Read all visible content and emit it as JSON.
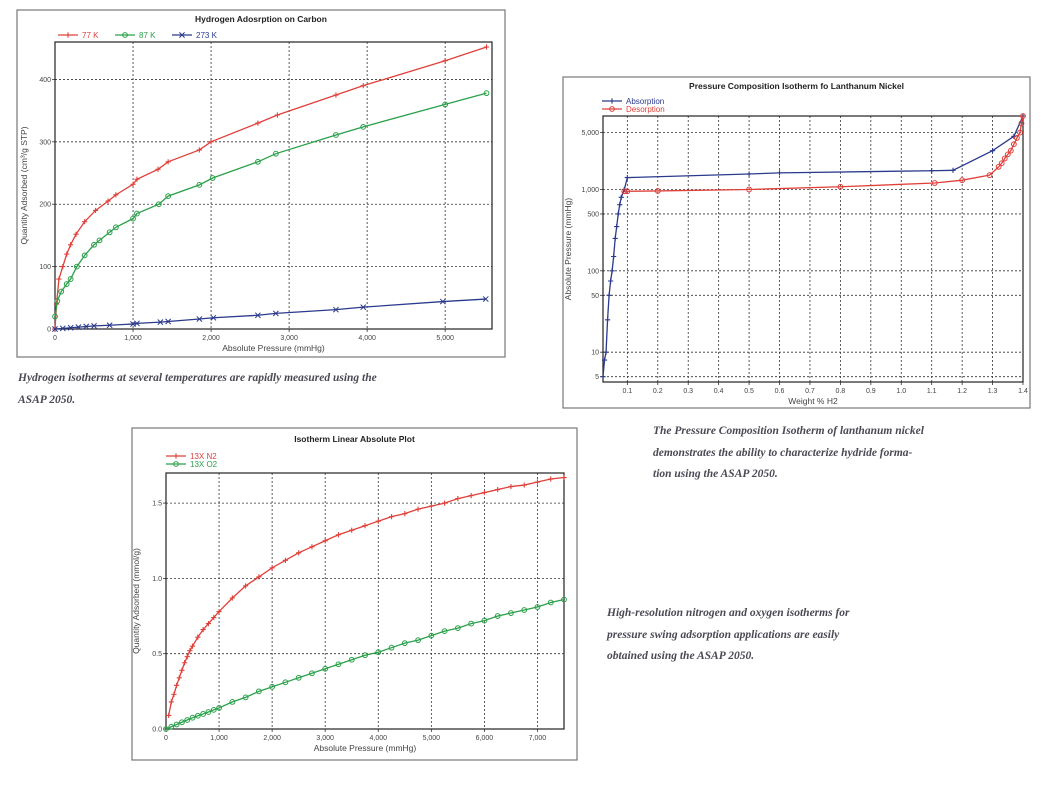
{
  "chart_data": [
    {
      "type": "line",
      "title": "Hydrogen Adosrption on Carbon",
      "xlabel": "Absolute Pressure (mmHg)",
      "ylabel": "Quantity Adsorbed (cm³/g STP)",
      "xlim": [
        0,
        5600
      ],
      "ylim": [
        0,
        460
      ],
      "xscale": "linear",
      "yscale": "linear",
      "xticks": [
        0,
        1000,
        2000,
        3000,
        4000,
        5000
      ],
      "xtick_labels": [
        "0",
        "1,000",
        "2,000",
        "3,000",
        "4,000",
        "5,000"
      ],
      "yticks": [
        0,
        100,
        200,
        300,
        400
      ],
      "ytick_labels": [
        "0",
        "100",
        "200",
        "300",
        "400"
      ],
      "grid": true,
      "legend": "top-left",
      "series": [
        {
          "name": "77 K",
          "color": "#e0403a",
          "marker": "plus",
          "x": [
            0,
            20,
            50,
            100,
            150,
            200,
            270,
            380,
            520,
            680,
            780,
            1000,
            1050,
            1320,
            1450,
            1850,
            2000,
            2600,
            2850,
            3600,
            3950,
            5000,
            5530
          ],
          "y": [
            0,
            40,
            80,
            100,
            120,
            135,
            152,
            172,
            190,
            205,
            215,
            232,
            240,
            256,
            268,
            287,
            300,
            330,
            343,
            375,
            390,
            430,
            452
          ]
        },
        {
          "name": "87 K",
          "color": "#2aa04a",
          "marker": "circle",
          "x": [
            0,
            30,
            80,
            150,
            200,
            280,
            380,
            500,
            570,
            700,
            780,
            1000,
            1050,
            1330,
            1450,
            1850,
            2020,
            2600,
            2830,
            3600,
            3950,
            5000,
            5530
          ],
          "y": [
            20,
            45,
            60,
            72,
            80,
            100,
            118,
            135,
            142,
            155,
            163,
            177,
            185,
            200,
            213,
            231,
            242,
            268,
            281,
            311,
            324,
            360,
            378
          ]
        },
        {
          "name": "273 K",
          "color": "#2b3a8c",
          "marker": "x",
          "x": [
            0,
            100,
            200,
            300,
            400,
            500,
            700,
            1000,
            1050,
            1350,
            1450,
            1850,
            2030,
            2600,
            2830,
            3600,
            3950,
            4970,
            5520
          ],
          "y": [
            0,
            1,
            2,
            3,
            4,
            5,
            6,
            8,
            9,
            11,
            12,
            16,
            18,
            22,
            25,
            31,
            35,
            44,
            48
          ]
        }
      ]
    },
    {
      "type": "line",
      "title": "Pressure Composition Isotherm fo Lanthanum Nickel",
      "xlabel": "Weight % H2",
      "ylabel": "Absolute Pressure (mmHg)",
      "xlim": [
        0.02,
        1.4
      ],
      "ylim": [
        4.3,
        8000
      ],
      "xscale": "linear",
      "yscale": "log",
      "xticks": [
        0.1,
        0.2,
        0.3,
        0.4,
        0.5,
        0.6,
        0.7,
        0.8,
        0.9,
        1.0,
        1.1,
        1.2,
        1.3,
        1.4
      ],
      "xtick_labels": [
        "0.1",
        "0.2",
        "0.3",
        "0.4",
        "0.5",
        "0.6",
        "0.7",
        "0.8",
        "0.9",
        "1.0",
        "1.1",
        "1.2",
        "1.3",
        "1.4"
      ],
      "yticks": [
        5,
        10,
        50,
        100,
        500,
        1000,
        5000
      ],
      "ytick_labels": [
        "5",
        "10",
        "50",
        "100",
        "500",
        "1,000",
        "5,000"
      ],
      "grid": true,
      "legend": "top-left",
      "series": [
        {
          "name": "Absorption",
          "color": "#2b3a8c",
          "marker": "plus",
          "x": [
            0.02,
            0.025,
            0.03,
            0.035,
            0.04,
            0.045,
            0.05,
            0.055,
            0.06,
            0.065,
            0.07,
            0.075,
            0.08,
            0.09,
            0.1,
            0.5,
            0.6,
            1.1,
            1.17,
            1.3,
            1.37,
            1.4
          ],
          "y": [
            5,
            8,
            10,
            25,
            50,
            75,
            100,
            150,
            250,
            350,
            500,
            650,
            800,
            1000,
            1400,
            1550,
            1600,
            1700,
            1720,
            3000,
            4500,
            8000
          ]
        },
        {
          "name": "Desorption",
          "color": "#e0403a",
          "marker": "circle",
          "x": [
            1.4,
            1.395,
            1.39,
            1.38,
            1.37,
            1.36,
            1.35,
            1.34,
            1.33,
            1.32,
            1.29,
            1.2,
            1.11,
            0.8,
            0.5,
            0.2,
            0.1,
            0.09
          ],
          "y": [
            8000,
            6500,
            5000,
            4300,
            3600,
            3000,
            2700,
            2400,
            2100,
            1900,
            1500,
            1300,
            1200,
            1080,
            1000,
            960,
            950,
            950
          ]
        }
      ]
    },
    {
      "type": "line",
      "title": "Isotherm Linear Absolute Plot",
      "xlabel": "Absolute Pressure (mmHg)",
      "ylabel": "Quantity Adsorbed (mmol/g)",
      "xlim": [
        0,
        7500
      ],
      "ylim": [
        0,
        1.7
      ],
      "xscale": "linear",
      "yscale": "linear",
      "xticks": [
        0,
        1000,
        2000,
        3000,
        4000,
        5000,
        6000,
        7000
      ],
      "xtick_labels": [
        "0",
        "1,000",
        "2,000",
        "3,000",
        "4,000",
        "5,000",
        "6,000",
        "7,000"
      ],
      "yticks": [
        0,
        0.5,
        1.0,
        1.5
      ],
      "ytick_labels": [
        "0.0",
        "0.5",
        "1.0",
        "1.5"
      ],
      "grid": true,
      "legend": "top-left",
      "series": [
        {
          "name": "13X N2",
          "color": "#e0403a",
          "marker": "plus",
          "x": [
            50,
            100,
            150,
            200,
            250,
            300,
            350,
            400,
            450,
            500,
            600,
            700,
            800,
            900,
            1000,
            1250,
            1500,
            1750,
            2000,
            2250,
            2500,
            2750,
            3000,
            3250,
            3500,
            3750,
            4000,
            4250,
            4500,
            4750,
            5000,
            5250,
            5500,
            5750,
            6000,
            6250,
            6500,
            6750,
            7000,
            7250,
            7500
          ],
          "y": [
            0.09,
            0.18,
            0.23,
            0.29,
            0.34,
            0.39,
            0.44,
            0.48,
            0.52,
            0.55,
            0.61,
            0.66,
            0.7,
            0.74,
            0.78,
            0.87,
            0.95,
            1.01,
            1.07,
            1.12,
            1.17,
            1.21,
            1.25,
            1.29,
            1.32,
            1.35,
            1.38,
            1.41,
            1.43,
            1.46,
            1.48,
            1.5,
            1.53,
            1.55,
            1.57,
            1.59,
            1.61,
            1.62,
            1.64,
            1.66,
            1.67
          ]
        },
        {
          "name": "13X O2",
          "color": "#2aa04a",
          "marker": "circle",
          "x": [
            0,
            100,
            200,
            300,
            400,
            500,
            600,
            700,
            800,
            900,
            1000,
            1250,
            1500,
            1750,
            2000,
            2250,
            2500,
            2750,
            3000,
            3250,
            3500,
            3750,
            4000,
            4250,
            4500,
            4750,
            5000,
            5250,
            5500,
            5750,
            6000,
            6250,
            6500,
            6750,
            7000,
            7250,
            7500
          ],
          "y": [
            0,
            0.015,
            0.03,
            0.045,
            0.06,
            0.075,
            0.088,
            0.1,
            0.113,
            0.127,
            0.14,
            0.18,
            0.21,
            0.25,
            0.28,
            0.31,
            0.34,
            0.37,
            0.4,
            0.43,
            0.46,
            0.49,
            0.51,
            0.54,
            0.57,
            0.59,
            0.62,
            0.65,
            0.67,
            0.7,
            0.72,
            0.75,
            0.77,
            0.79,
            0.81,
            0.84,
            0.86
          ]
        }
      ]
    }
  ],
  "captions": [
    {
      "lines": [
        "Hydrogen isotherms at several temperatures are rapidly measured using the",
        "ASAP 2050."
      ]
    },
    {
      "lines": [
        "The Pressure Composition Isotherm of lanthanum nickel",
        "demonstrates the ability to characterize hydride forma-",
        "tion using the ASAP 2050."
      ]
    },
    {
      "lines": [
        "High-resolution nitrogen and oxygen isotherms for",
        "pressure swing adsorption applications are easily",
        "obtained using the ASAP 2050."
      ]
    }
  ]
}
